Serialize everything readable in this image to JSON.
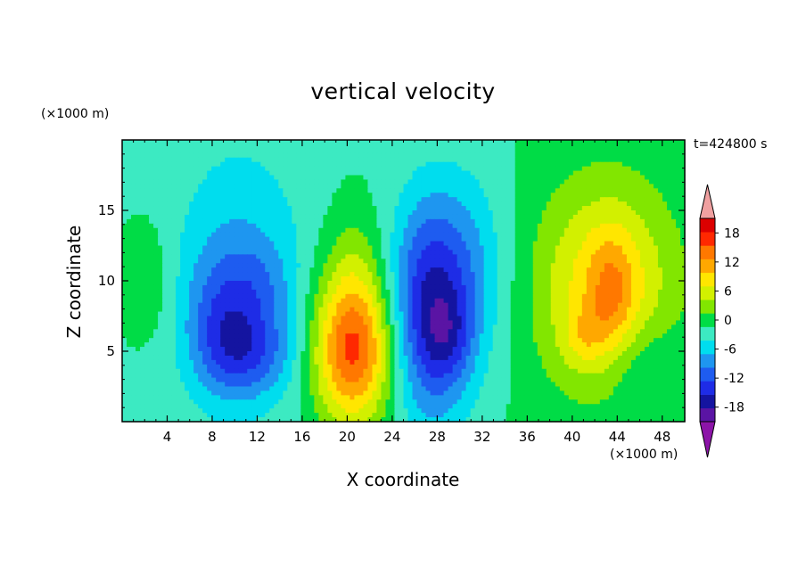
{
  "chart_data": {
    "type": "heatmap",
    "title": "vertical velocity",
    "xlabel": "X coordinate",
    "ylabel": "Z coordinate",
    "x_unit": "(×1000 m)",
    "y_unit": "(×1000 m)",
    "time_label": "t=424800 s",
    "xlim": [
      0,
      50
    ],
    "ylim": [
      0,
      20
    ],
    "x_ticks": [
      4,
      8,
      12,
      16,
      20,
      24,
      28,
      32,
      36,
      40,
      44,
      48
    ],
    "y_ticks": [
      5,
      10,
      15
    ],
    "colorbar": {
      "levels": [
        -21,
        -18,
        -15,
        -12,
        -9,
        -6,
        -3,
        0,
        3,
        6,
        9,
        12,
        15,
        18,
        21
      ],
      "tick_labels": [
        "18",
        "12",
        "6",
        "0",
        "-6",
        "-12",
        "-18"
      ],
      "tick_values": [
        18,
        12,
        6,
        0,
        -6,
        -12,
        -18
      ],
      "colors": [
        "#5a14a4",
        "#1414a0",
        "#1e2ce6",
        "#1e5cf0",
        "#1e96f0",
        "#00ddee",
        "#3ceac2",
        "#00dc46",
        "#82e600",
        "#d2f000",
        "#ffe600",
        "#ffa800",
        "#ff7800",
        "#ff2800",
        "#dc0000"
      ],
      "under_color": "#8c14a8",
      "over_color": "#f0a0a0"
    },
    "features": [
      {
        "x": 2.5,
        "z": 10,
        "sx": 1.5,
        "sz": 3,
        "value": 3
      },
      {
        "x": 10.5,
        "z": 10.5,
        "sx": 4.5,
        "sz": 7,
        "value": -6
      },
      {
        "x": 9,
        "z": 7,
        "sx": 2.3,
        "sz": 3.5,
        "value": -7
      },
      {
        "x": 11.5,
        "z": 5,
        "sx": 2.8,
        "sz": 2.2,
        "value": -7
      },
      {
        "x": 12.5,
        "z": 10,
        "sx": 2,
        "sz": 2,
        "value": -3
      },
      {
        "x": 20.5,
        "z": 5,
        "sx": 2.5,
        "sz": 3.6,
        "value": 19
      },
      {
        "x": 20.5,
        "z": 11,
        "sx": 2,
        "sz": 3,
        "value": 4
      },
      {
        "x": 27.5,
        "z": 8,
        "sx": 2.6,
        "sz": 5.5,
        "value": -16
      },
      {
        "x": 29,
        "z": 6,
        "sx": 1.4,
        "sz": 2,
        "value": -4
      },
      {
        "x": 31.5,
        "z": 11,
        "sx": 2.5,
        "sz": 5,
        "value": -4
      },
      {
        "x": 43,
        "z": 9.5,
        "sx": 4.5,
        "sz": 5.5,
        "value": 11
      },
      {
        "x": 43.5,
        "z": 9,
        "sx": 1.5,
        "sz": 3,
        "value": 6
      },
      {
        "x": 41,
        "z": 6,
        "sx": 1.3,
        "sz": 1.5,
        "value": 4
      },
      {
        "x": 46,
        "z": 4,
        "sx": 2.5,
        "sz": 2.5,
        "value": -4
      }
    ]
  }
}
